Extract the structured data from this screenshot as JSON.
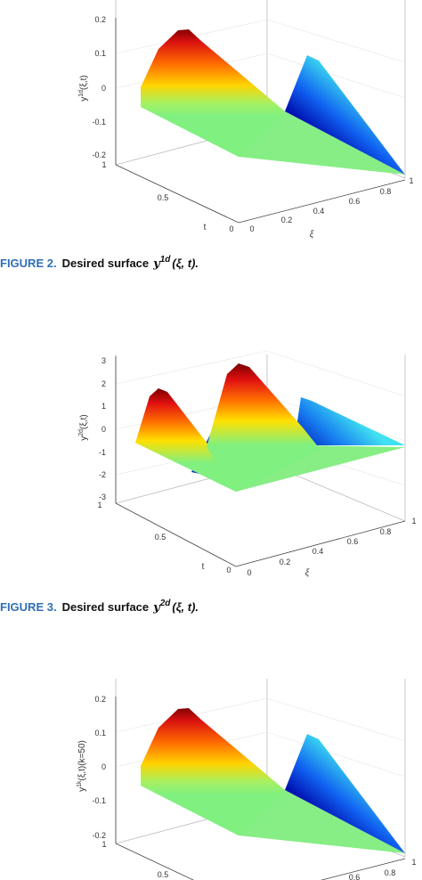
{
  "figures": [
    {
      "z_ticks": [
        "0.2",
        "0.1",
        "0",
        "-0.1",
        "-0.2"
      ],
      "t_ticks": [
        "1",
        "0.5",
        "0"
      ],
      "xi_ticks": [
        "0",
        "0.2",
        "0.4",
        "0.6",
        "0.8",
        "1"
      ],
      "z_label": {
        "base": "y",
        "sup": "1d",
        "args": "(ξ,t)"
      },
      "t_label": "t",
      "xi_label": "ξ",
      "caption": {
        "label": "FIGURE 2.",
        "text": "Desired surface",
        "math": "y",
        "sup": "1d",
        "args": "(ξ, t)."
      }
    },
    {
      "z_ticks": [
        "3",
        "2",
        "1",
        "0",
        "-1",
        "-2",
        "-3"
      ],
      "t_ticks": [
        "1",
        "0.5",
        "0"
      ],
      "xi_ticks": [
        "0",
        "0.2",
        "0.4",
        "0.6",
        "0.8",
        "1"
      ],
      "z_label": {
        "base": "y",
        "sup": "2d",
        "args": "(ξ,t)"
      },
      "t_label": "t",
      "xi_label": "ξ",
      "caption": {
        "label": "FIGURE 3.",
        "text": "Desired surface",
        "math": "y",
        "sup": "2d",
        "args": "(ξ, t)."
      }
    },
    {
      "z_ticks": [
        "0.2",
        "0.1",
        "0",
        "-0.1",
        "-0.2"
      ],
      "t_ticks": [
        "1",
        "0.5"
      ],
      "xi_ticks": [
        "0.6",
        "0.8",
        "1"
      ],
      "z_label": {
        "base": "y",
        "sup": "1k",
        "args": "(ξ,t)(k=50)"
      }
    }
  ]
}
